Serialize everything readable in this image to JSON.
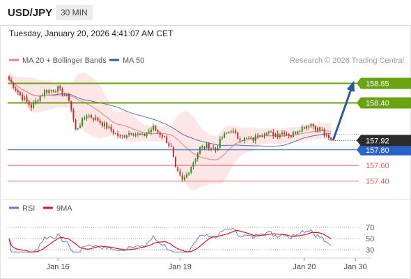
{
  "header": {
    "pair": "USD/JPY",
    "timeframe": "30 MIN"
  },
  "timestamp": "Tuesday, January 20, 2026 4:41:07 AM CET",
  "watermark": "Research © 2026 Trading Central",
  "colors": {
    "bollinger": "#f08080",
    "band_fill": "#fde3e3",
    "ma50": "#3b5a9a",
    "candle_up": "#2f8a1a",
    "candle_down": "#c8282b",
    "resistance": "#6aa312",
    "support": "#2a62c9",
    "target": "#e06060",
    "arrow": "#2a5a9a",
    "rsi": "#5a7fd8",
    "rsi_ma": "#d9161b"
  },
  "chart_data": [
    {
      "type": "candlestick",
      "title": "",
      "legend": [
        {
          "name": "MA 20 + Bollinger Bands",
          "color": "#f08080"
        },
        {
          "name": "MA 50",
          "color": "#3b5a9a"
        }
      ],
      "legend_placement": "top-left",
      "y_range": [
        157.2,
        158.86
      ],
      "x_range": [
        0,
        152
      ],
      "x_ticks": [
        {
          "label": "Jan 16",
          "x": 22
        },
        {
          "label": "Jan 19",
          "x": 77
        },
        {
          "label": "Jan 20",
          "x": 133
        },
        {
          "label": "Jan 30",
          "x": 156
        }
      ],
      "current_price": {
        "label": "157.92",
        "value": 157.92
      },
      "levels": [
        {
          "label": "158.65",
          "value": 158.65,
          "kind": "resistance"
        },
        {
          "label": "158.40",
          "value": 158.4,
          "kind": "resistance"
        },
        {
          "label": "157.80",
          "value": 157.8,
          "kind": "support"
        },
        {
          "label": "157.60",
          "value": 157.6,
          "kind": "target"
        },
        {
          "label": "157.40",
          "value": 157.4,
          "kind": "target"
        }
      ],
      "close_anchors": [
        [
          0,
          158.7
        ],
        [
          5,
          158.5
        ],
        [
          10,
          158.35
        ],
        [
          16,
          158.55
        ],
        [
          22,
          158.58
        ],
        [
          27,
          158.45
        ],
        [
          30,
          158.05
        ],
        [
          35,
          158.25
        ],
        [
          40,
          158.18
        ],
        [
          45,
          158.07
        ],
        [
          50,
          157.96
        ],
        [
          55,
          158.03
        ],
        [
          60,
          157.97
        ],
        [
          65,
          158.08
        ],
        [
          70,
          157.96
        ],
        [
          73,
          157.82
        ],
        [
          75,
          157.55
        ],
        [
          78,
          157.4
        ],
        [
          80,
          157.48
        ],
        [
          83,
          157.65
        ],
        [
          86,
          157.82
        ],
        [
          90,
          157.85
        ],
        [
          93,
          157.8
        ],
        [
          96,
          157.96
        ],
        [
          100,
          158.05
        ],
        [
          103,
          157.96
        ],
        [
          106,
          157.94
        ],
        [
          110,
          157.93
        ],
        [
          113,
          158.02
        ],
        [
          117,
          158.01
        ],
        [
          121,
          158.0
        ],
        [
          124,
          158.03
        ],
        [
          127,
          157.98
        ],
        [
          130,
          158.06
        ],
        [
          133,
          158.1
        ],
        [
          136,
          158.13
        ],
        [
          138,
          158.08
        ],
        [
          141,
          158.04
        ],
        [
          143,
          157.95
        ],
        [
          145,
          157.92
        ]
      ],
      "arrow": {
        "from": [
          145,
          157.92
        ],
        "to": [
          155,
          158.65
        ]
      }
    },
    {
      "type": "line",
      "title": "",
      "series": [
        {
          "name": "RSI",
          "color": "#5a7fd8"
        },
        {
          "name": "9MA",
          "color": "#d9161b"
        }
      ],
      "y_ticks": [
        70,
        50,
        30
      ],
      "y_range": [
        20,
        80
      ]
    }
  ]
}
